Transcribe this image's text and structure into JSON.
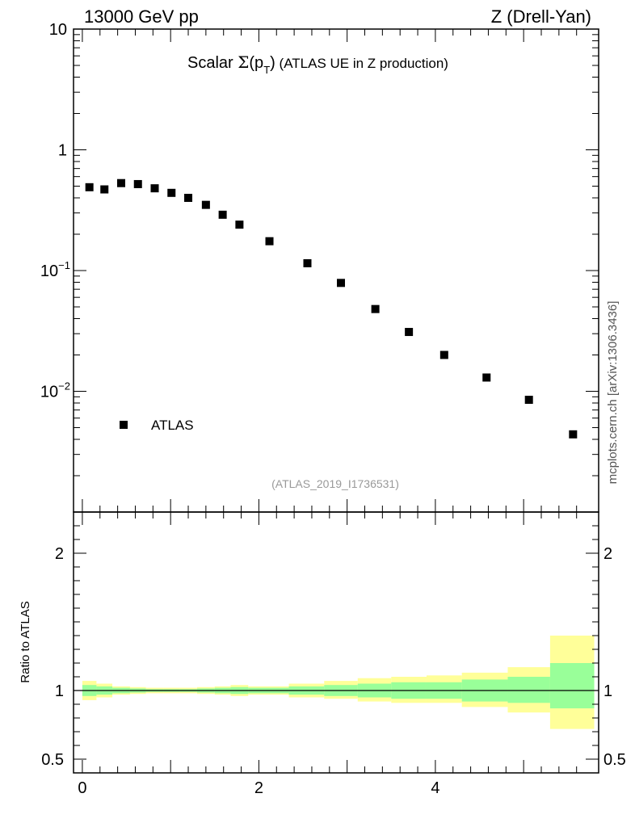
{
  "header": {
    "left": "13000 GeV pp",
    "right": "Z (Drell-Yan)"
  },
  "title": {
    "prefix": "Scalar ",
    "sigma": "Σ",
    "open": "(p",
    "sub": "T",
    "close": ")",
    "suffix": " (ATLAS UE in Z production)"
  },
  "watermark": "(ATLAS_2019_I1736531)",
  "side_label": "mcplots.cern.ch [arXiv:1306.3436]",
  "ratio_ylabel": "Ratio to ATLAS",
  "legend": {
    "marker_label": "ATLAS"
  },
  "colors": {
    "band_inner": "#99ff99",
    "band_outer": "#ffff99",
    "marker": "#000000",
    "axis": "#000000",
    "watermark": "#999999"
  },
  "chart_data": {
    "type": "scatter",
    "main": {
      "yscale": "log",
      "ylim": [
        0.001,
        10
      ],
      "yticks": [
        {
          "value": 10,
          "base": "10",
          "exp": ""
        },
        {
          "value": 1,
          "base": "1",
          "exp": ""
        },
        {
          "value": 0.1,
          "base": "10",
          "exp": "−1"
        },
        {
          "value": 0.01,
          "base": "10",
          "exp": "−2"
        }
      ]
    },
    "xlim": [
      -0.1,
      5.85
    ],
    "xticks": [
      0,
      2,
      4
    ],
    "series": [
      {
        "name": "ATLAS",
        "x": [
          0.08,
          0.25,
          0.44,
          0.63,
          0.82,
          1.01,
          1.2,
          1.4,
          1.59,
          1.78,
          2.12,
          2.55,
          2.93,
          3.32,
          3.7,
          4.1,
          4.58,
          5.06,
          5.56
        ],
        "y": [
          0.49,
          0.47,
          0.53,
          0.52,
          0.48,
          0.44,
          0.4,
          0.35,
          0.29,
          0.24,
          0.175,
          0.115,
          0.079,
          0.048,
          0.031,
          0.02,
          0.013,
          0.0085,
          0.0044
        ]
      }
    ],
    "ratio": {
      "ylim": [
        0.4,
        2.3
      ],
      "yticks": [
        0.5,
        1,
        2
      ],
      "reference": 1,
      "bins": [
        {
          "x0": 0.0,
          "x1": 0.16,
          "inner": [
            0.96,
            1.04
          ],
          "outer": [
            0.93,
            1.07
          ]
        },
        {
          "x0": 0.16,
          "x1": 0.34,
          "inner": [
            0.97,
            1.03
          ],
          "outer": [
            0.95,
            1.05
          ]
        },
        {
          "x0": 0.34,
          "x1": 0.54,
          "inner": [
            0.98,
            1.02
          ],
          "outer": [
            0.97,
            1.03
          ]
        },
        {
          "x0": 0.54,
          "x1": 0.72,
          "inner": [
            0.985,
            1.015
          ],
          "outer": [
            0.975,
            1.025
          ]
        },
        {
          "x0": 0.72,
          "x1": 0.92,
          "inner": [
            0.99,
            1.01
          ],
          "outer": [
            0.98,
            1.02
          ]
        },
        {
          "x0": 0.92,
          "x1": 1.1,
          "inner": [
            0.99,
            1.01
          ],
          "outer": [
            0.98,
            1.02
          ]
        },
        {
          "x0": 1.1,
          "x1": 1.3,
          "inner": [
            0.99,
            1.01
          ],
          "outer": [
            0.98,
            1.02
          ]
        },
        {
          "x0": 1.3,
          "x1": 1.5,
          "inner": [
            0.985,
            1.015
          ],
          "outer": [
            0.975,
            1.025
          ]
        },
        {
          "x0": 1.5,
          "x1": 1.68,
          "inner": [
            0.98,
            1.02
          ],
          "outer": [
            0.97,
            1.03
          ]
        },
        {
          "x0": 1.68,
          "x1": 1.88,
          "inner": [
            0.975,
            1.025
          ],
          "outer": [
            0.96,
            1.04
          ]
        },
        {
          "x0": 1.88,
          "x1": 2.34,
          "inner": [
            0.98,
            1.02
          ],
          "outer": [
            0.97,
            1.03
          ]
        },
        {
          "x0": 2.34,
          "x1": 2.74,
          "inner": [
            0.97,
            1.03
          ],
          "outer": [
            0.95,
            1.05
          ]
        },
        {
          "x0": 2.74,
          "x1": 3.12,
          "inner": [
            0.96,
            1.04
          ],
          "outer": [
            0.94,
            1.07
          ]
        },
        {
          "x0": 3.12,
          "x1": 3.5,
          "inner": [
            0.95,
            1.05
          ],
          "outer": [
            0.92,
            1.09
          ]
        },
        {
          "x0": 3.5,
          "x1": 3.9,
          "inner": [
            0.94,
            1.06
          ],
          "outer": [
            0.91,
            1.1
          ]
        },
        {
          "x0": 3.9,
          "x1": 4.3,
          "inner": [
            0.94,
            1.06
          ],
          "outer": [
            0.91,
            1.11
          ]
        },
        {
          "x0": 4.3,
          "x1": 4.82,
          "inner": [
            0.92,
            1.08
          ],
          "outer": [
            0.88,
            1.13
          ]
        },
        {
          "x0": 4.82,
          "x1": 5.3,
          "inner": [
            0.91,
            1.1
          ],
          "outer": [
            0.84,
            1.17
          ]
        },
        {
          "x0": 5.3,
          "x1": 5.8,
          "inner": [
            0.87,
            1.2
          ],
          "outer": [
            0.72,
            1.4
          ]
        }
      ]
    }
  }
}
